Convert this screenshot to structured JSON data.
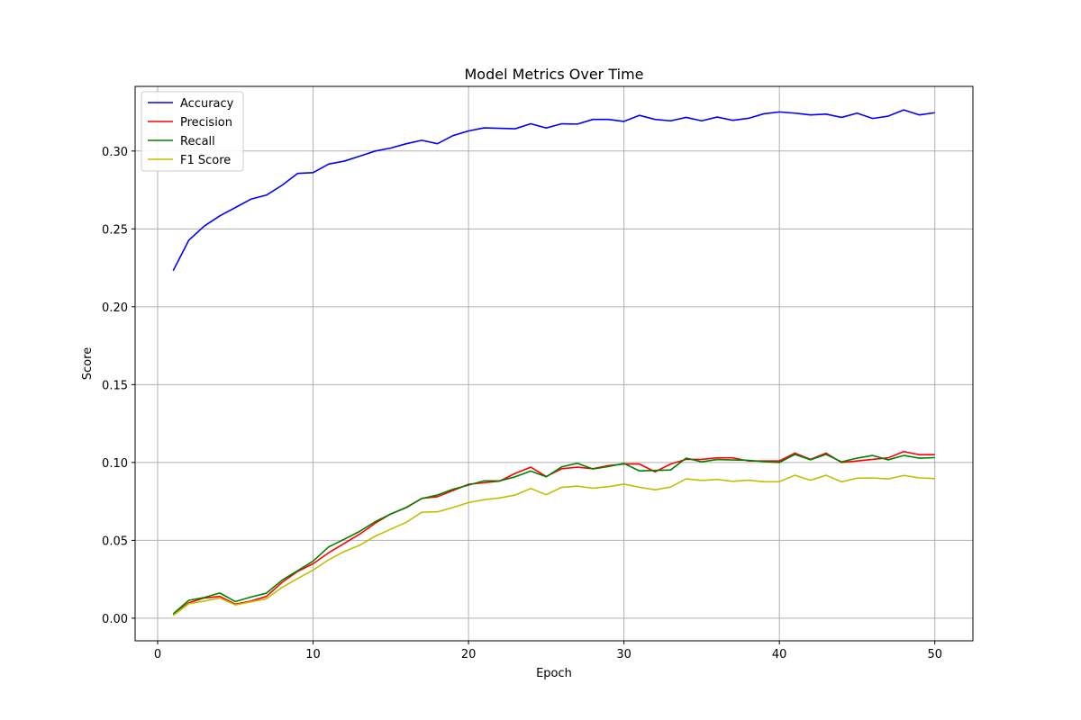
{
  "chart_data": {
    "type": "line",
    "title": "Model Metrics Over Time",
    "xlabel": "Epoch",
    "ylabel": "Score",
    "xlim": [
      -1.45,
      52.45
    ],
    "ylim": [
      -0.0145,
      0.3415
    ],
    "xticks": [
      0,
      10,
      20,
      30,
      40,
      50
    ],
    "xtick_labels": [
      "0",
      "10",
      "20",
      "30",
      "40",
      "50"
    ],
    "yticks": [
      0.0,
      0.05,
      0.1,
      0.15,
      0.2,
      0.25,
      0.3
    ],
    "ytick_labels": [
      "0.00",
      "0.05",
      "0.10",
      "0.15",
      "0.20",
      "0.25",
      "0.30"
    ],
    "grid": true,
    "legend_position": "top-left",
    "x": [
      1,
      2,
      3,
      4,
      5,
      6,
      7,
      8,
      9,
      10,
      11,
      12,
      13,
      14,
      15,
      16,
      17,
      18,
      19,
      20,
      21,
      22,
      23,
      24,
      25,
      26,
      27,
      28,
      29,
      30,
      31,
      32,
      33,
      34,
      35,
      36,
      37,
      38,
      39,
      40,
      41,
      42,
      43,
      44,
      45,
      46,
      47,
      48,
      49,
      50
    ],
    "series": [
      {
        "name": "Accuracy",
        "color": "#0000ff",
        "values": [
          0.2232,
          0.2427,
          0.2518,
          0.2584,
          0.2637,
          0.2691,
          0.2717,
          0.278,
          0.2856,
          0.2861,
          0.2916,
          0.2935,
          0.2967,
          0.3,
          0.3019,
          0.3047,
          0.3069,
          0.3047,
          0.3099,
          0.3129,
          0.3149,
          0.3146,
          0.3143,
          0.3175,
          0.3148,
          0.3175,
          0.3173,
          0.3203,
          0.3203,
          0.319,
          0.3229,
          0.3203,
          0.3194,
          0.3216,
          0.3194,
          0.3218,
          0.3197,
          0.321,
          0.3239,
          0.3251,
          0.3243,
          0.3232,
          0.3237,
          0.3216,
          0.3243,
          0.3209,
          0.3224,
          0.3264,
          0.3232,
          0.3246
        ]
      },
      {
        "name": "Precision",
        "color": "#ff0000",
        "values": [
          0.0024,
          0.0099,
          0.013,
          0.014,
          0.009,
          0.011,
          0.014,
          0.023,
          0.03,
          0.035,
          0.042,
          0.048,
          0.054,
          0.061,
          0.067,
          0.071,
          0.077,
          0.078,
          0.082,
          0.086,
          0.087,
          0.088,
          0.093,
          0.097,
          0.091,
          0.096,
          0.097,
          0.096,
          0.098,
          0.099,
          0.099,
          0.094,
          0.099,
          0.102,
          0.102,
          0.103,
          0.103,
          0.101,
          0.101,
          0.101,
          0.106,
          0.102,
          0.106,
          0.1,
          0.101,
          0.102,
          0.103,
          0.107,
          0.105,
          0.105
        ]
      },
      {
        "name": "Recall",
        "color": "#008000",
        "values": [
          0.0028,
          0.0115,
          0.0133,
          0.0162,
          0.0107,
          0.0136,
          0.0161,
          0.0244,
          0.0305,
          0.0367,
          0.0458,
          0.0507,
          0.0558,
          0.062,
          0.0669,
          0.0712,
          0.0769,
          0.0791,
          0.0828,
          0.0855,
          0.0882,
          0.0882,
          0.0908,
          0.0945,
          0.0908,
          0.0972,
          0.0995,
          0.0958,
          0.0974,
          0.0994,
          0.0946,
          0.0949,
          0.0952,
          0.1028,
          0.1004,
          0.1019,
          0.1016,
          0.1014,
          0.1005,
          0.1,
          0.1052,
          0.1017,
          0.1052,
          0.1004,
          0.1028,
          0.1045,
          0.1017,
          0.1045,
          0.1028,
          0.1031
        ]
      },
      {
        "name": "F1 Score",
        "color": "#bfbf00",
        "values": [
          0.0018,
          0.0093,
          0.011,
          0.013,
          0.0085,
          0.0105,
          0.0125,
          0.0198,
          0.0255,
          0.0309,
          0.0375,
          0.0428,
          0.0469,
          0.0527,
          0.0572,
          0.0616,
          0.0681,
          0.0683,
          0.0711,
          0.0743,
          0.0761,
          0.0772,
          0.0791,
          0.0833,
          0.0793,
          0.0841,
          0.0848,
          0.0835,
          0.0845,
          0.0861,
          0.0841,
          0.0825,
          0.0842,
          0.0895,
          0.0885,
          0.0891,
          0.0879,
          0.0886,
          0.0876,
          0.0877,
          0.0918,
          0.0886,
          0.0918,
          0.0876,
          0.0899,
          0.0901,
          0.0894,
          0.0917,
          0.0901,
          0.0897
        ]
      }
    ]
  }
}
